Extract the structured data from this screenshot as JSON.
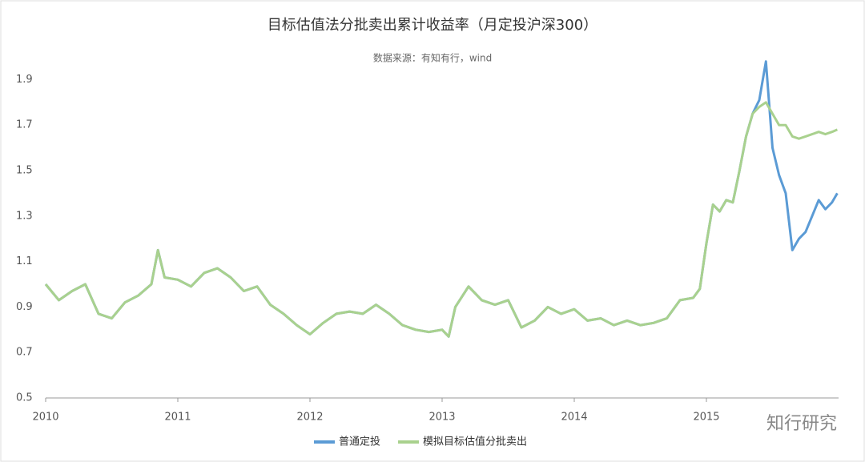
{
  "chart_data": {
    "type": "line",
    "title": "目标估值法分批卖出累计收益率（月定投沪深300）",
    "subtitle": "数据来源：有知有行，wind",
    "watermark": "知行研究",
    "x": [
      2010.0,
      2010.1,
      2010.2,
      2010.3,
      2010.4,
      2010.5,
      2010.6,
      2010.7,
      2010.8,
      2010.85,
      2010.9,
      2011.0,
      2011.1,
      2011.2,
      2011.3,
      2011.4,
      2011.5,
      2011.6,
      2011.7,
      2011.8,
      2011.9,
      2012.0,
      2012.1,
      2012.2,
      2012.3,
      2012.4,
      2012.5,
      2012.6,
      2012.7,
      2012.8,
      2012.9,
      2013.0,
      2013.05,
      2013.1,
      2013.2,
      2013.3,
      2013.4,
      2013.5,
      2013.6,
      2013.7,
      2013.8,
      2013.9,
      2014.0,
      2014.1,
      2014.2,
      2014.3,
      2014.4,
      2014.5,
      2014.6,
      2014.7,
      2014.8,
      2014.9,
      2014.95,
      2015.0,
      2015.05,
      2015.1,
      2015.15,
      2015.2,
      2015.25,
      2015.3,
      2015.35,
      2015.4,
      2015.45,
      2015.5,
      2015.55,
      2015.6,
      2015.65,
      2015.7,
      2015.75,
      2015.8,
      2015.85,
      2015.9,
      2015.95,
      2015.99
    ],
    "series": [
      {
        "name": "普通定投",
        "color": "#5b9bd5",
        "values": [
          1.0,
          0.93,
          0.97,
          1.0,
          0.87,
          0.85,
          0.92,
          0.95,
          1.0,
          1.15,
          1.03,
          1.02,
          0.99,
          1.05,
          1.07,
          1.03,
          0.97,
          0.99,
          0.91,
          0.87,
          0.82,
          0.78,
          0.83,
          0.87,
          0.88,
          0.87,
          0.91,
          0.87,
          0.82,
          0.8,
          0.79,
          0.8,
          0.77,
          0.9,
          0.99,
          0.93,
          0.91,
          0.93,
          0.81,
          0.84,
          0.9,
          0.87,
          0.89,
          0.84,
          0.85,
          0.82,
          0.84,
          0.82,
          0.83,
          0.85,
          0.93,
          0.94,
          0.98,
          1.18,
          1.35,
          1.32,
          1.37,
          1.36,
          1.5,
          1.65,
          1.75,
          1.81,
          1.98,
          1.6,
          1.48,
          1.4,
          1.15,
          1.2,
          1.23,
          1.3,
          1.37,
          1.33,
          1.36,
          1.4
        ]
      },
      {
        "name": "模拟目标估值分批卖出",
        "color": "#a9d18e",
        "values": [
          1.0,
          0.93,
          0.97,
          1.0,
          0.87,
          0.85,
          0.92,
          0.95,
          1.0,
          1.15,
          1.03,
          1.02,
          0.99,
          1.05,
          1.07,
          1.03,
          0.97,
          0.99,
          0.91,
          0.87,
          0.82,
          0.78,
          0.83,
          0.87,
          0.88,
          0.87,
          0.91,
          0.87,
          0.82,
          0.8,
          0.79,
          0.8,
          0.77,
          0.9,
          0.99,
          0.93,
          0.91,
          0.93,
          0.81,
          0.84,
          0.9,
          0.87,
          0.89,
          0.84,
          0.85,
          0.82,
          0.84,
          0.82,
          0.83,
          0.85,
          0.93,
          0.94,
          0.98,
          1.18,
          1.35,
          1.32,
          1.37,
          1.36,
          1.5,
          1.65,
          1.75,
          1.78,
          1.8,
          1.75,
          1.7,
          1.7,
          1.65,
          1.64,
          1.65,
          1.66,
          1.67,
          1.66,
          1.67,
          1.68
        ]
      }
    ],
    "xlim": [
      2010,
      2016
    ],
    "xticks": [
      2010,
      2011,
      2012,
      2013,
      2014,
      2015
    ],
    "ylim": [
      0.5,
      2.0
    ],
    "yticks": [
      0.5,
      0.7,
      0.9,
      1.1,
      1.3,
      1.5,
      1.7,
      1.9
    ],
    "grid": false,
    "legend": "bottom"
  }
}
